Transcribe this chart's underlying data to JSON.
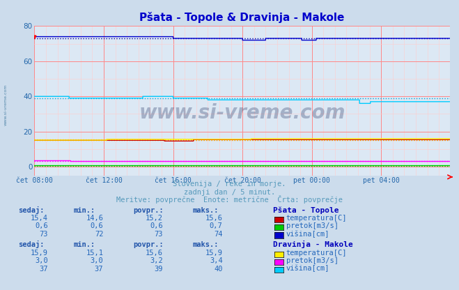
{
  "title": "Pšata - Topole & Dravinja - Makole",
  "title_color": "#0000cc",
  "bg_color": "#ccdcec",
  "plot_bg_color": "#dce8f4",
  "grid_color_major": "#ff8888",
  "grid_color_minor": "#ffcccc",
  "xlabel_color": "#2266aa",
  "watermark": "www.si-vreme.com",
  "subtitle1": "Slovenija / reke in morje.",
  "subtitle2": "zadnji dan / 5 minut.",
  "subtitle3": "Meritve: povprečne  Enote: metrične  Črta: povprečje",
  "subtitle_color": "#5599bb",
  "xtick_labels": [
    "čet 08:00",
    "čet 12:00",
    "čet 16:00",
    "čet 20:00",
    "pet 00:00",
    "pet 04:00"
  ],
  "xtick_positions": [
    0,
    96,
    192,
    288,
    384,
    480
  ],
  "ylim": [
    -5,
    80
  ],
  "yticks": [
    0,
    20,
    40,
    60,
    80
  ],
  "n_points": 576,
  "psata_temp_color": "#cc0000",
  "psata_temp_avg_color": "#ffaa00",
  "psata_pretok_color": "#00cc00",
  "psata_pretok_avg_color": "#00cc00",
  "psata_visina_color": "#0000cc",
  "psata_visina_avg_color": "#0000aa",
  "dravinja_temp_color": "#ffee00",
  "dravinja_temp_avg_color": "#ffee00",
  "dravinja_pretok_color": "#ff00ff",
  "dravinja_pretok_avg_color": "#ff00ff",
  "dravinja_visina_color": "#00ccff",
  "dravinja_visina_avg_color": "#00aadd",
  "psata_temp_sedaj": 15.4,
  "psata_temp_min": 14.6,
  "psata_temp_povpr": 15.2,
  "psata_temp_maks": 15.6,
  "psata_pretok_sedaj": 0.6,
  "psata_pretok_min": 0.6,
  "psata_pretok_povpr": 0.6,
  "psata_pretok_maks": 0.7,
  "psata_visina_sedaj": 73,
  "psata_visina_min": 72,
  "psata_visina_povpr": 73,
  "psata_visina_maks": 74,
  "dravinja_temp_sedaj": 15.9,
  "dravinja_temp_min": 15.1,
  "dravinja_temp_povpr": 15.6,
  "dravinja_temp_maks": 15.9,
  "dravinja_pretok_sedaj": 3.0,
  "dravinja_pretok_min": 3.0,
  "dravinja_pretok_povpr": 3.2,
  "dravinja_pretok_maks": 3.4,
  "dravinja_visina_sedaj": 37,
  "dravinja_visina_min": 37,
  "dravinja_visina_povpr": 39,
  "dravinja_visina_maks": 40
}
